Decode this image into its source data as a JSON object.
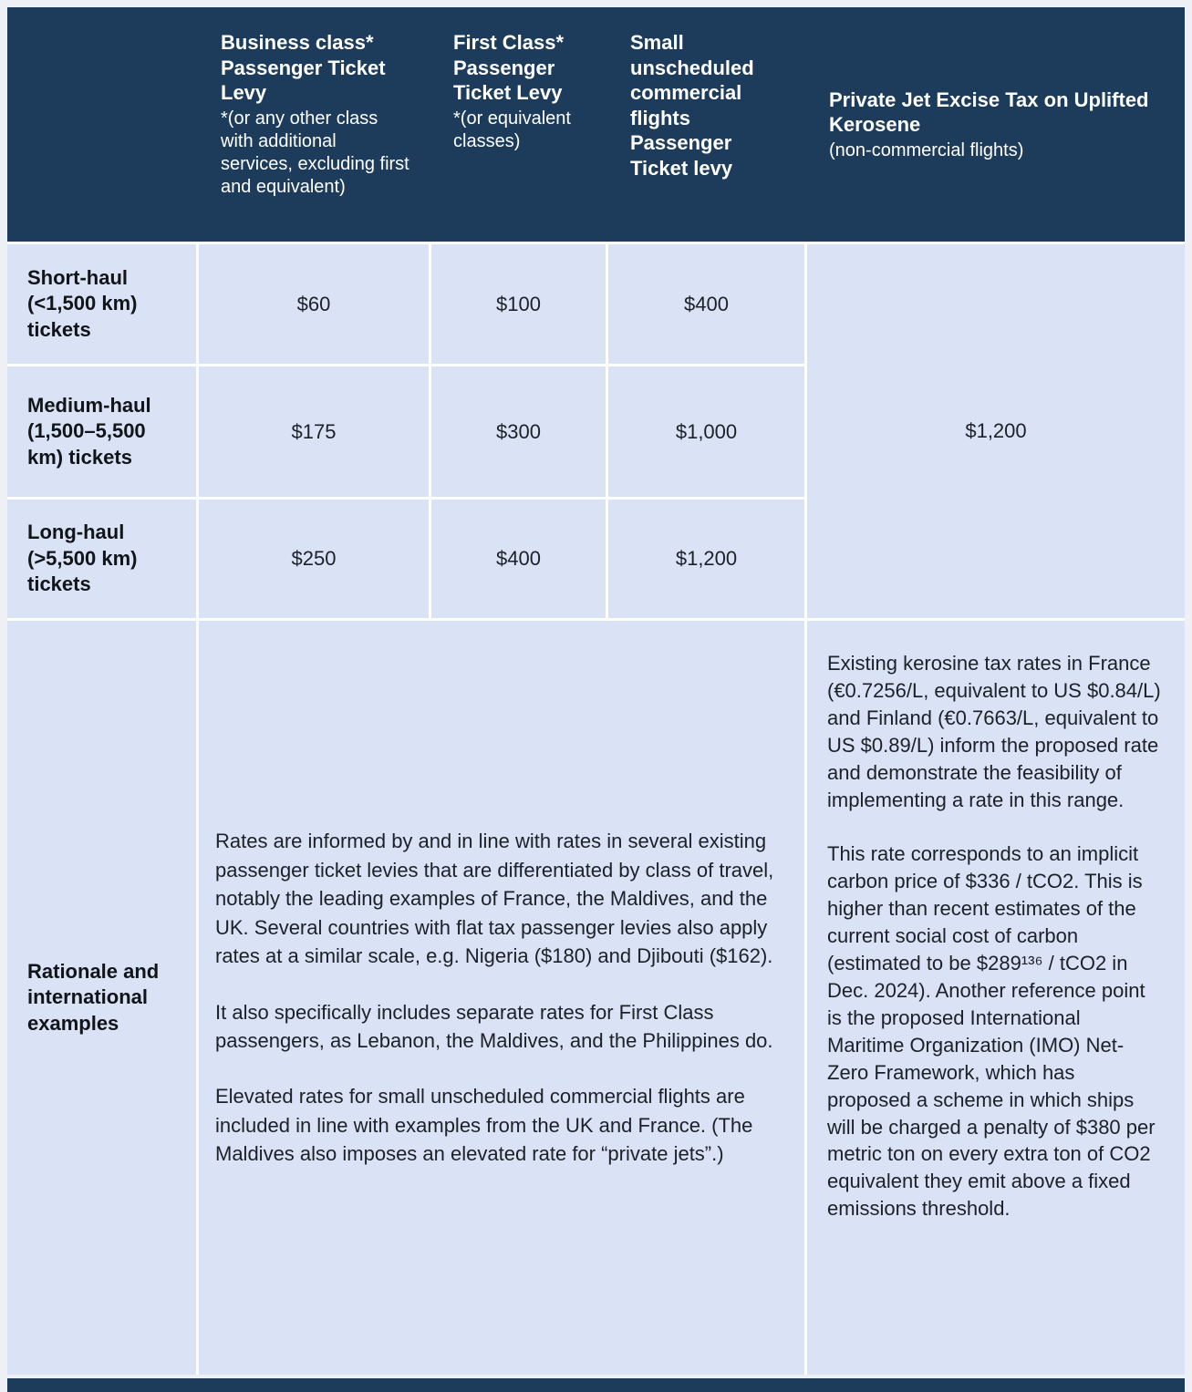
{
  "colors": {
    "header_bg": "#1d3c5c",
    "cell_bg": "#d9e3f5",
    "header_text": "#ffffff",
    "body_text": "#1c2128",
    "page_bg": "#eef0f5"
  },
  "header": {
    "columns": [
      {
        "title": "Business class* Passenger Ticket Levy",
        "subtitle": "*(or any other class with additional services, excluding first and equivalent)"
      },
      {
        "title": "First Class* Passenger Ticket Levy",
        "subtitle": "*(or equivalent classes)"
      },
      {
        "title": "Small unscheduled commercial flights Passenger Ticket levy",
        "subtitle": ""
      },
      {
        "title": "Private Jet Excise Tax on Uplifted Kerosene",
        "subtitle": "(non-commercial flights)"
      }
    ]
  },
  "rows": [
    {
      "label": "Short-haul (<1,500 km) tickets",
      "values": [
        "$60",
        "$100",
        "$400"
      ]
    },
    {
      "label": "Medium-haul (1,500–5,500 km) tickets",
      "values": [
        "$175",
        "$300",
        "$1,000"
      ]
    },
    {
      "label": "Long-haul (>5,500 km) tickets",
      "values": [
        "$250",
        "$400",
        "$1,200"
      ]
    }
  ],
  "private_jet": {
    "rate": "$1,200"
  },
  "rationale": {
    "label": "Rationale and international examples",
    "paragraphs": [
      "Rates are informed by and in line with rates in several existing passenger ticket levies that are differentiated by class of travel, notably the leading examples of France, the Maldives, and the UK. Several countries with flat tax passenger levies also apply rates at a similar scale, e.g. Nigeria ($180) and Djibouti ($162).",
      "It also specifically includes separate rates for First Class passengers, as Lebanon, the Maldives, and the Philippines do.",
      "Elevated rates for small unscheduled commercial flights are included in line with examples from the UK and France. (The Maldives also imposes an elevated rate for “private jets”.)"
    ]
  },
  "kerosene_notes": {
    "paragraphs": [
      "Existing kerosine tax rates in France (€0.7256/L, equivalent to US $0.84/L) and Finland (€0.7663/L, equivalent to US $0.89/L) inform the proposed rate and demonstrate the feasibility of implementing a rate in this range.",
      "This rate corresponds to an implicit carbon price of $336 / tCO2. This is higher than recent estimates of the current social cost of carbon (estimated to be $289¹³⁶ / tCO2 in Dec. 2024). Another reference point is the proposed International Maritime Organization (IMO) Net-Zero Framework, which has proposed a scheme in which ships will be charged a penalty of $380 per metric ton on every extra ton of CO2 equivalent they emit above a fixed emissions threshold."
    ]
  }
}
